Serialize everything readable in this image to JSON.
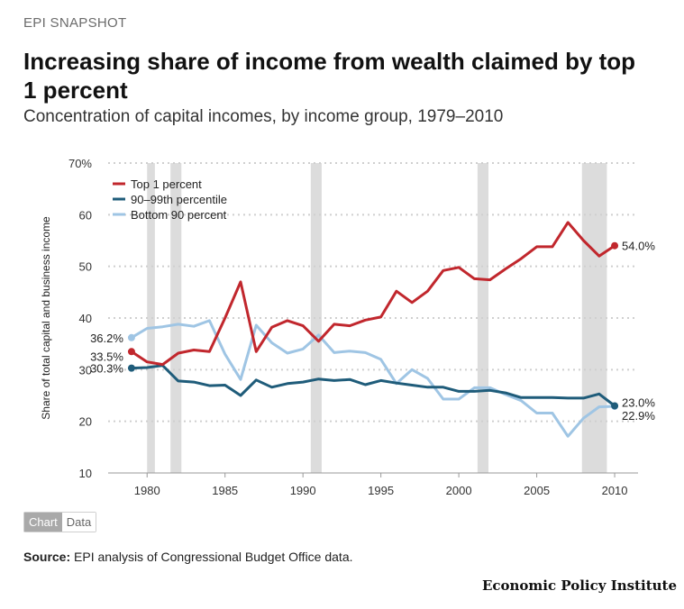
{
  "header": {
    "kicker": "EPI SNAPSHOT",
    "title": "Increasing share of income from wealth claimed by top 1 percent",
    "subtitle": "Concentration of capital incomes, by income group, 1979–2010"
  },
  "tabs": [
    {
      "label": "Chart",
      "active": true
    },
    {
      "label": "Data",
      "active": false
    }
  ],
  "source": {
    "label": "Source:",
    "text": "EPI analysis of Congressional Budget Office data."
  },
  "brand": "Economic Policy Institute",
  "chart_data": {
    "type": "line",
    "title": "Increasing share of income from wealth claimed by top 1 percent",
    "ylabel": "Share of total capital and business income",
    "xlabel": "",
    "xlim": [
      1977.5,
      2011.5
    ],
    "ylim": [
      10,
      70
    ],
    "yticks": [
      10,
      20,
      30,
      40,
      50,
      60,
      70
    ],
    "ytick_labels": [
      "10",
      "20",
      "30",
      "40",
      "50",
      "60",
      "70%"
    ],
    "xticks": [
      1980,
      1985,
      1990,
      1995,
      2000,
      2005,
      2010
    ],
    "xtick_labels": [
      "1980",
      "1985",
      "1990",
      "1995",
      "2000",
      "2005",
      "2010"
    ],
    "recessions": [
      [
        1980.0,
        1980.5
      ],
      [
        1981.5,
        1982.2
      ],
      [
        1990.5,
        1991.2
      ],
      [
        2001.2,
        2001.9
      ],
      [
        2007.9,
        2009.5
      ]
    ],
    "legend_position": "top-left",
    "x": [
      1979,
      1980,
      1981,
      1982,
      1983,
      1984,
      1985,
      1986,
      1987,
      1988,
      1989,
      1990,
      1991,
      1992,
      1993,
      1994,
      1995,
      1996,
      1997,
      1998,
      1999,
      2000,
      2001,
      2002,
      2003,
      2004,
      2005,
      2006,
      2007,
      2008,
      2009,
      2010
    ],
    "series": [
      {
        "name": "Top 1 percent",
        "color": "#c1272d",
        "values": [
          33.5,
          31.5,
          31.0,
          33.2,
          33.8,
          33.5,
          40.0,
          47.0,
          33.5,
          38.2,
          39.5,
          38.5,
          35.5,
          38.8,
          38.5,
          39.6,
          40.2,
          45.2,
          43.0,
          45.2,
          49.2,
          49.8,
          47.6,
          47.4,
          49.5,
          51.5,
          53.8,
          53.8,
          58.5,
          55.0,
          52.0,
          54.0
        ],
        "end_label": "54.0%",
        "start_label": "33.5%"
      },
      {
        "name": "90–99th percentile",
        "color": "#1f5c7a",
        "values": [
          30.3,
          30.4,
          30.8,
          27.8,
          27.6,
          26.9,
          27.0,
          25.0,
          28.0,
          26.6,
          27.3,
          27.6,
          28.2,
          27.9,
          28.1,
          27.1,
          27.9,
          27.4,
          27.0,
          26.6,
          26.6,
          25.8,
          25.8,
          26.0,
          25.5,
          24.6,
          24.6,
          24.6,
          24.5,
          24.5,
          25.3,
          23.0
        ],
        "end_label": "23.0%",
        "start_label": "30.3%"
      },
      {
        "name": "Bottom 90 percent",
        "color": "#9fc5e4",
        "values": [
          36.2,
          38.0,
          38.3,
          38.8,
          38.4,
          39.5,
          33.0,
          28.1,
          38.6,
          35.2,
          33.2,
          34.0,
          36.7,
          33.3,
          33.6,
          33.3,
          32.0,
          27.3,
          30.0,
          28.3,
          24.3,
          24.3,
          26.5,
          26.5,
          25.2,
          24.0,
          21.6,
          21.6,
          17.1,
          20.6,
          22.8,
          22.9
        ],
        "end_label": "22.9%",
        "start_label": "36.2%"
      }
    ]
  }
}
